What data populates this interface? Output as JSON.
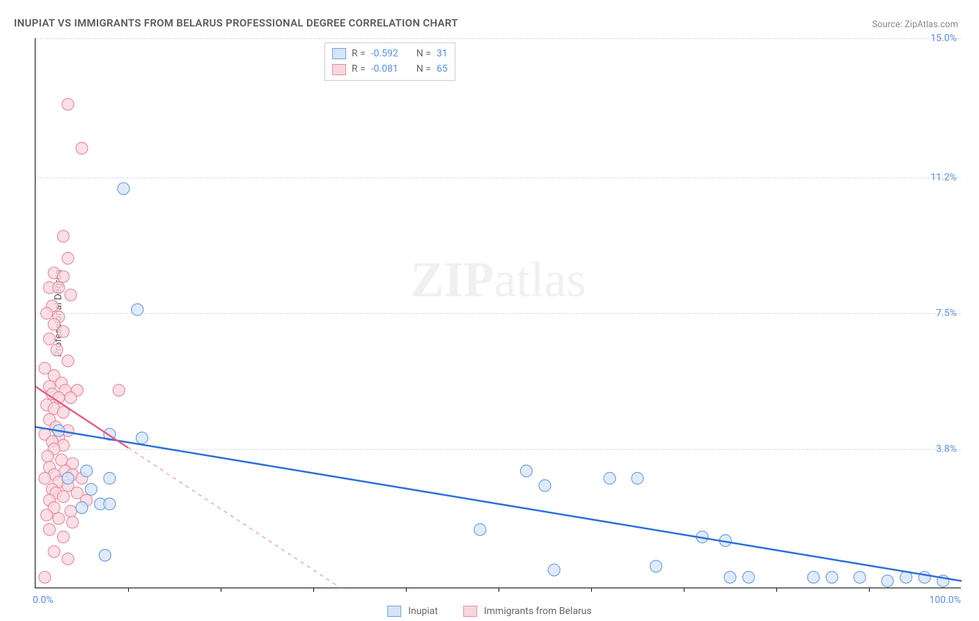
{
  "title": "INUPIAT VS IMMIGRANTS FROM BELARUS PROFESSIONAL DEGREE CORRELATION CHART",
  "source_label": "Source:",
  "source_name": "ZipAtlas.com",
  "yaxis_label": "Professional Degree",
  "watermark": {
    "bold": "ZIP",
    "rest": "atlas"
  },
  "chart": {
    "type": "scatter",
    "xlim": [
      0,
      100
    ],
    "ylim": [
      0,
      15
    ],
    "x_label_min": "0.0%",
    "x_label_max": "100.0%",
    "x_tick_marks": [
      10,
      20,
      30,
      40,
      50,
      60,
      70,
      80,
      90
    ],
    "y_ticks": [
      {
        "v": 3.8,
        "label": "3.8%"
      },
      {
        "v": 7.5,
        "label": "7.5%"
      },
      {
        "v": 11.2,
        "label": "11.2%"
      },
      {
        "v": 15.0,
        "label": "15.0%"
      }
    ],
    "grid_color": "#d8d8d8",
    "background_color": "#ffffff",
    "marker_radius": 8.5,
    "marker_stroke_width": 1.2,
    "series": [
      {
        "name": "Inupiat",
        "fill": "#d6e4f7",
        "stroke": "#6c9fe0",
        "line_color": "#2d6fd6",
        "line_width": 2.5,
        "trend": {
          "x1": 0,
          "y1": 4.4,
          "x2": 100,
          "y2": 0.2,
          "dash_from_x": null
        },
        "R": "-0.592",
        "N": "31",
        "points": [
          [
            9.5,
            10.9
          ],
          [
            11.0,
            7.6
          ],
          [
            2.5,
            4.3
          ],
          [
            8.0,
            4.2
          ],
          [
            11.5,
            4.1
          ],
          [
            5.5,
            3.2
          ],
          [
            8.0,
            3.0
          ],
          [
            3.5,
            3.0
          ],
          [
            6.0,
            2.7
          ],
          [
            7.0,
            2.3
          ],
          [
            8.0,
            2.3
          ],
          [
            5.0,
            2.2
          ],
          [
            7.5,
            0.9
          ],
          [
            48.0,
            1.6
          ],
          [
            53.0,
            3.2
          ],
          [
            55.0,
            2.8
          ],
          [
            56.0,
            0.5
          ],
          [
            62.0,
            3.0
          ],
          [
            65.0,
            3.0
          ],
          [
            67.0,
            0.6
          ],
          [
            72.0,
            1.4
          ],
          [
            74.5,
            1.3
          ],
          [
            75.0,
            0.3
          ],
          [
            77.0,
            0.3
          ],
          [
            84.0,
            0.3
          ],
          [
            86.0,
            0.3
          ],
          [
            89.0,
            0.3
          ],
          [
            92.0,
            0.2
          ],
          [
            94.0,
            0.3
          ],
          [
            96.0,
            0.3
          ],
          [
            98.0,
            0.2
          ]
        ]
      },
      {
        "name": "Immigrants from Belarus",
        "fill": "#f7d6de",
        "stroke": "#e98aa0",
        "line_color": "#e75d84",
        "line_width": 2.5,
        "trend": {
          "x1": 0,
          "y1": 5.5,
          "x2": 33,
          "y2": 0,
          "dash_from_x": 10
        },
        "R": "-0.081",
        "N": "65",
        "points": [
          [
            3.5,
            13.2
          ],
          [
            5.0,
            12.0
          ],
          [
            3.0,
            9.6
          ],
          [
            3.5,
            9.0
          ],
          [
            2.0,
            8.6
          ],
          [
            3.0,
            8.5
          ],
          [
            1.5,
            8.2
          ],
          [
            2.5,
            8.2
          ],
          [
            3.8,
            8.0
          ],
          [
            1.8,
            7.7
          ],
          [
            1.2,
            7.5
          ],
          [
            2.5,
            7.4
          ],
          [
            2.0,
            7.2
          ],
          [
            3.0,
            7.0
          ],
          [
            1.5,
            6.8
          ],
          [
            2.3,
            6.5
          ],
          [
            3.5,
            6.2
          ],
          [
            1.0,
            6.0
          ],
          [
            2.0,
            5.8
          ],
          [
            2.8,
            5.6
          ],
          [
            1.5,
            5.5
          ],
          [
            3.2,
            5.4
          ],
          [
            4.5,
            5.4
          ],
          [
            1.8,
            5.3
          ],
          [
            2.5,
            5.2
          ],
          [
            3.8,
            5.2
          ],
          [
            9.0,
            5.4
          ],
          [
            1.2,
            5.0
          ],
          [
            2.0,
            4.9
          ],
          [
            3.0,
            4.8
          ],
          [
            1.5,
            4.6
          ],
          [
            2.2,
            4.4
          ],
          [
            3.5,
            4.3
          ],
          [
            1.0,
            4.2
          ],
          [
            2.5,
            4.1
          ],
          [
            1.8,
            4.0
          ],
          [
            3.0,
            3.9
          ],
          [
            2.0,
            3.8
          ],
          [
            1.3,
            3.6
          ],
          [
            2.8,
            3.5
          ],
          [
            4.0,
            3.4
          ],
          [
            1.5,
            3.3
          ],
          [
            3.2,
            3.2
          ],
          [
            2.0,
            3.1
          ],
          [
            4.0,
            3.1
          ],
          [
            1.0,
            3.0
          ],
          [
            2.5,
            2.9
          ],
          [
            5.0,
            3.0
          ],
          [
            3.5,
            2.8
          ],
          [
            1.8,
            2.7
          ],
          [
            2.2,
            2.6
          ],
          [
            4.5,
            2.6
          ],
          [
            3.0,
            2.5
          ],
          [
            1.5,
            2.4
          ],
          [
            5.5,
            2.4
          ],
          [
            2.0,
            2.2
          ],
          [
            3.8,
            2.1
          ],
          [
            1.2,
            2.0
          ],
          [
            2.5,
            1.9
          ],
          [
            4.0,
            1.8
          ],
          [
            1.5,
            1.6
          ],
          [
            3.0,
            1.4
          ],
          [
            2.0,
            1.0
          ],
          [
            3.5,
            0.8
          ],
          [
            1.0,
            0.3
          ]
        ]
      }
    ],
    "legend_labels": {
      "R": "R =",
      "N": "N ="
    }
  }
}
